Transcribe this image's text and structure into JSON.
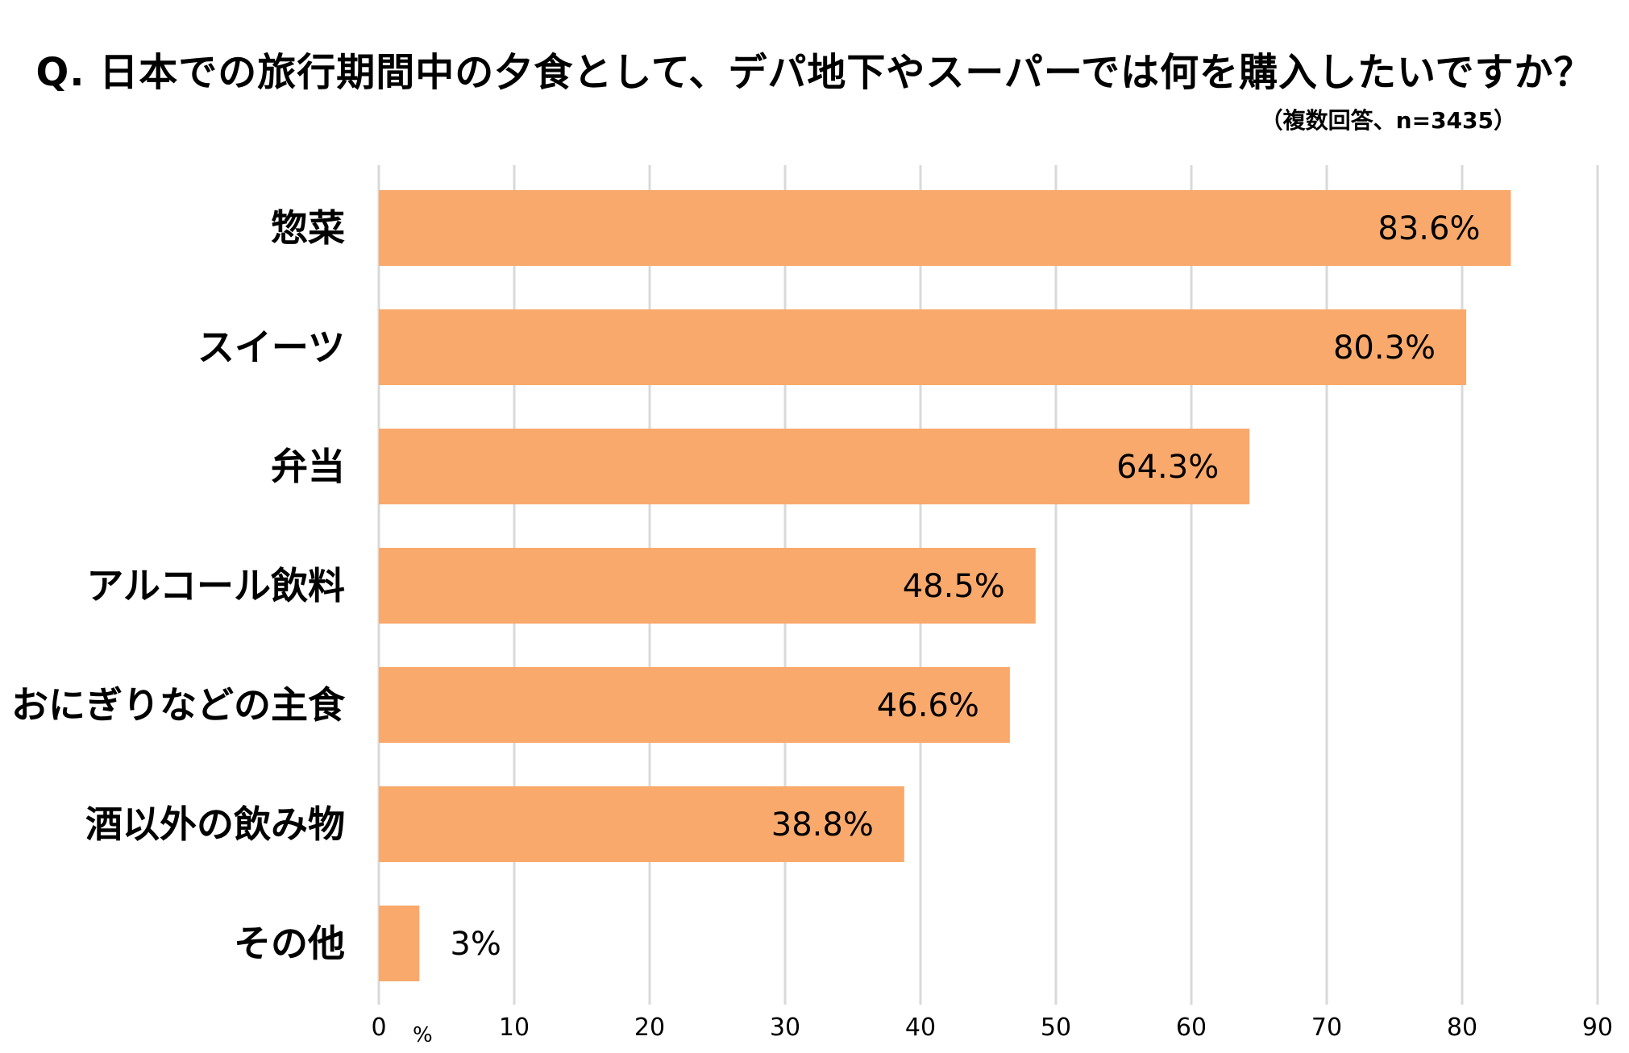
{
  "title": "Q. 日本での旅行期間中の夕食として、デパ地下やスーパーでは何を購入したいですか？",
  "subtitle": "（複数回答、n=3435）",
  "colors": {
    "bar": "#F9A96B",
    "grid": "#D9D9D9"
  },
  "chart_data": {
    "type": "bar",
    "orientation": "horizontal",
    "categories": [
      "惣菜",
      "スイーツ",
      "弁当",
      "アルコール飲料",
      "おにぎりなどの主食",
      "酒以外の飲み物",
      "その他"
    ],
    "values": [
      83.6,
      80.3,
      64.3,
      48.5,
      46.6,
      38.8,
      3
    ],
    "data_labels": [
      "83.6%",
      "80.3%",
      "64.3%",
      "48.5%",
      "46.6%",
      "38.8%",
      "3%"
    ],
    "xlim": [
      0,
      90
    ],
    "xticks": [
      0,
      10,
      20,
      30,
      40,
      50,
      60,
      70,
      80,
      90
    ],
    "xtick_labels": [
      "0",
      "10",
      "20",
      "30",
      "40",
      "50",
      "60",
      "70",
      "80",
      "90"
    ],
    "x_unit": "%",
    "grid": true,
    "legend": "none"
  }
}
